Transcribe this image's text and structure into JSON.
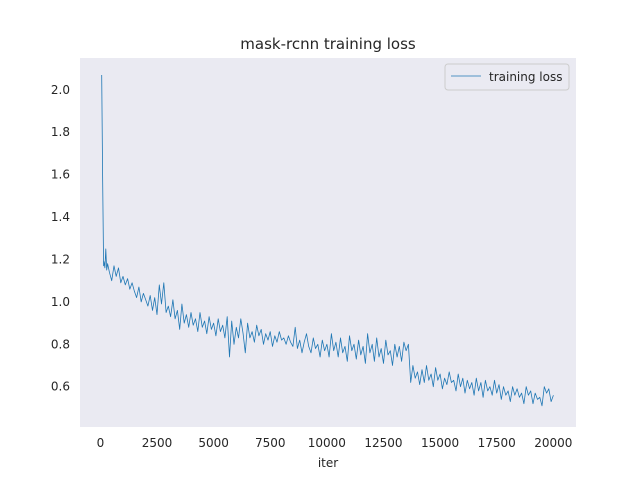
{
  "chart_data": {
    "type": "line",
    "title": "mask-rcnn training loss",
    "xlabel": "iter",
    "ylabel": "",
    "xlim": [
      -900,
      21000
    ],
    "ylim": [
      0.41,
      2.15
    ],
    "xticks": [
      0,
      2500,
      5000,
      7500,
      10000,
      12500,
      15000,
      17500,
      20000
    ],
    "yticks": [
      0.6,
      0.8,
      1.0,
      1.2,
      1.4,
      1.6,
      1.8,
      2.0
    ],
    "ytick_labels": [
      "0.6",
      "0.8",
      "1.0",
      "1.2",
      "1.4",
      "1.6",
      "1.8",
      "2.0"
    ],
    "grid": false,
    "legend_position": "top-right",
    "background": "#eaeaf2",
    "series": [
      {
        "name": "training loss",
        "color": "#1f77b4",
        "x": [
          60,
          100,
          140,
          160,
          200,
          240,
          280,
          320,
          400,
          500,
          600,
          700,
          800,
          900,
          1000,
          1100,
          1200,
          1300,
          1400,
          1500,
          1600,
          1700,
          1800,
          1900,
          2000,
          2100,
          2200,
          2300,
          2400,
          2500,
          2600,
          2700,
          2800,
          2900,
          3000,
          3100,
          3200,
          3300,
          3400,
          3500,
          3600,
          3700,
          3800,
          3900,
          4000,
          4100,
          4200,
          4300,
          4400,
          4500,
          4600,
          4700,
          4800,
          4900,
          5000,
          5100,
          5200,
          5300,
          5400,
          5500,
          5600,
          5700,
          5800,
          5900,
          6000,
          6100,
          6200,
          6300,
          6400,
          6500,
          6600,
          6700,
          6800,
          6900,
          7000,
          7100,
          7200,
          7300,
          7400,
          7500,
          7600,
          7700,
          7800,
          7900,
          8000,
          8100,
          8200,
          8300,
          8400,
          8500,
          8600,
          8700,
          8800,
          8900,
          9000,
          9100,
          9200,
          9300,
          9400,
          9500,
          9600,
          9700,
          9800,
          9900,
          10000,
          10100,
          10200,
          10300,
          10400,
          10500,
          10600,
          10700,
          10800,
          10900,
          11000,
          11100,
          11200,
          11300,
          11400,
          11500,
          11600,
          11700,
          11800,
          11900,
          12000,
          12100,
          12200,
          12300,
          12400,
          12500,
          12600,
          12700,
          12800,
          12900,
          13000,
          13100,
          13200,
          13300,
          13400,
          13500,
          13600,
          13700,
          13800,
          13900,
          14000,
          14100,
          14200,
          14300,
          14400,
          14500,
          14600,
          14700,
          14800,
          14900,
          15000,
          15100,
          15200,
          15300,
          15400,
          15500,
          15600,
          15700,
          15800,
          15900,
          16000,
          16100,
          16200,
          16300,
          16400,
          16500,
          16600,
          16700,
          16800,
          16900,
          17000,
          17100,
          17200,
          17300,
          17400,
          17500,
          17600,
          17700,
          17800,
          17900,
          18000,
          18100,
          18200,
          18300,
          18400,
          18500,
          18600,
          18700,
          18800,
          18900,
          19000,
          19100,
          19200,
          19300,
          19400,
          19500,
          19600,
          19700,
          19800,
          19900,
          20000
        ],
        "y": [
          2.07,
          1.6,
          1.17,
          1.19,
          1.16,
          1.25,
          1.15,
          1.18,
          1.14,
          1.1,
          1.17,
          1.12,
          1.16,
          1.09,
          1.12,
          1.08,
          1.11,
          1.06,
          1.09,
          1.05,
          1.02,
          1.07,
          1.0,
          1.04,
          1.01,
          0.98,
          1.03,
          0.96,
          1.02,
          0.94,
          1.08,
          0.99,
          1.09,
          0.95,
          0.98,
          0.93,
          1.01,
          0.92,
          0.96,
          0.87,
          0.99,
          0.9,
          0.94,
          0.88,
          0.95,
          0.89,
          0.92,
          0.86,
          0.95,
          0.88,
          0.91,
          0.85,
          0.93,
          0.87,
          0.9,
          0.84,
          0.92,
          0.86,
          0.89,
          0.83,
          0.93,
          0.74,
          0.91,
          0.8,
          0.88,
          0.83,
          0.92,
          0.85,
          0.76,
          0.9,
          0.83,
          0.86,
          0.81,
          0.89,
          0.84,
          0.87,
          0.8,
          0.85,
          0.82,
          0.86,
          0.79,
          0.84,
          0.81,
          0.86,
          0.82,
          0.83,
          0.8,
          0.84,
          0.81,
          0.79,
          0.88,
          0.78,
          0.82,
          0.76,
          0.81,
          0.85,
          0.79,
          0.76,
          0.83,
          0.78,
          0.8,
          0.74,
          0.82,
          0.77,
          0.8,
          0.74,
          0.85,
          0.77,
          0.81,
          0.74,
          0.83,
          0.76,
          0.79,
          0.72,
          0.84,
          0.77,
          0.8,
          0.73,
          0.82,
          0.75,
          0.79,
          0.71,
          0.85,
          0.76,
          0.8,
          0.72,
          0.83,
          0.74,
          0.78,
          0.71,
          0.82,
          0.75,
          0.77,
          0.7,
          0.8,
          0.74,
          0.79,
          0.72,
          0.81,
          0.77,
          0.8,
          0.62,
          0.7,
          0.64,
          0.67,
          0.61,
          0.68,
          0.62,
          0.7,
          0.63,
          0.66,
          0.6,
          0.69,
          0.63,
          0.66,
          0.59,
          0.64,
          0.61,
          0.67,
          0.62,
          0.63,
          0.58,
          0.66,
          0.6,
          0.64,
          0.57,
          0.63,
          0.59,
          0.62,
          0.56,
          0.64,
          0.58,
          0.62,
          0.55,
          0.63,
          0.58,
          0.6,
          0.56,
          0.63,
          0.57,
          0.61,
          0.54,
          0.6,
          0.56,
          0.58,
          0.53,
          0.6,
          0.56,
          0.59,
          0.55,
          0.57,
          0.52,
          0.6,
          0.56,
          0.58,
          0.52,
          0.57,
          0.54,
          0.55,
          0.51,
          0.6,
          0.57,
          0.59,
          0.53,
          0.56
        ]
      }
    ]
  }
}
